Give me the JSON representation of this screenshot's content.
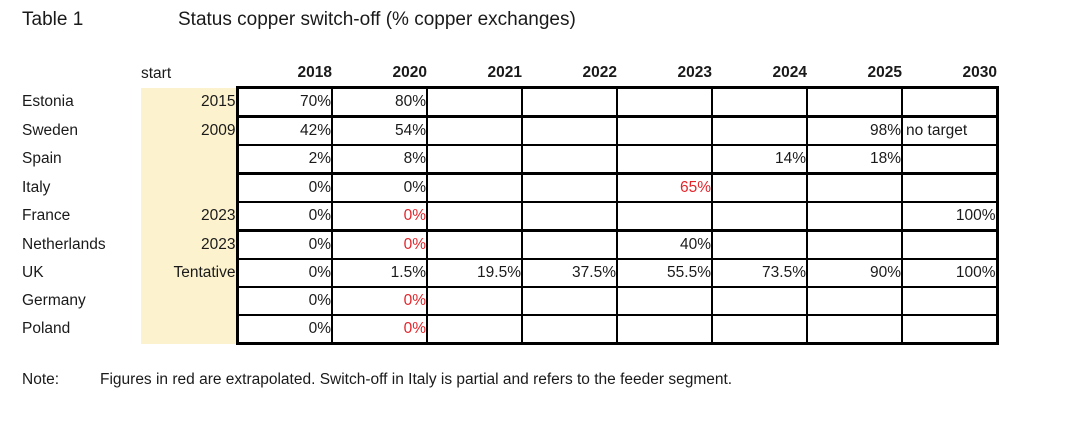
{
  "title": {
    "label": "Table 1",
    "text": "Status copper switch-off (% copper exchanges)"
  },
  "table": {
    "start_header": "start",
    "year_headers": [
      "2018",
      "2020",
      "2021",
      "2022",
      "2023",
      "2024",
      "2025",
      "2030"
    ],
    "rows": [
      {
        "country": "Estonia",
        "start": "2015",
        "thick_bottom": true,
        "cells": [
          {
            "t": "70%"
          },
          {
            "t": "80%"
          },
          {},
          {},
          {},
          {},
          {},
          {}
        ]
      },
      {
        "country": "Sweden",
        "start": "2009",
        "thick_bottom": false,
        "cells": [
          {
            "t": "42%"
          },
          {
            "t": "54%"
          },
          {},
          {},
          {},
          {},
          {
            "t": "98%"
          },
          {
            "t": "no target",
            "align": "left"
          }
        ]
      },
      {
        "country": "Spain",
        "start": "",
        "thick_bottom": true,
        "cells": [
          {
            "t": "2%"
          },
          {
            "t": "8%"
          },
          {},
          {},
          {},
          {
            "t": "14%"
          },
          {
            "t": "18%"
          },
          {}
        ]
      },
      {
        "country": "Italy",
        "start": "",
        "thick_bottom": false,
        "cells": [
          {
            "t": "0%"
          },
          {
            "t": "0%"
          },
          {},
          {},
          {
            "t": "65%",
            "red": true
          },
          {},
          {},
          {}
        ]
      },
      {
        "country": "France",
        "start": "2023",
        "thick_bottom": true,
        "cells": [
          {
            "t": "0%"
          },
          {
            "t": "0%",
            "red": true
          },
          {},
          {},
          {},
          {},
          {},
          {
            "t": "100%"
          }
        ]
      },
      {
        "country": "Netherlands",
        "start": "2023",
        "thick_bottom": false,
        "cells": [
          {
            "t": "0%"
          },
          {
            "t": "0%",
            "red": true
          },
          {},
          {},
          {
            "t": "40%"
          },
          {},
          {},
          {}
        ]
      },
      {
        "country": "UK",
        "start": "Tentative",
        "thick_bottom": false,
        "cells": [
          {
            "t": "0%"
          },
          {
            "t": "1.5%"
          },
          {
            "t": "19.5%"
          },
          {
            "t": "37.5%"
          },
          {
            "t": "55.5%"
          },
          {
            "t": "73.5%"
          },
          {
            "t": "90%"
          },
          {
            "t": "100%"
          }
        ]
      },
      {
        "country": "Germany",
        "start": "",
        "thick_bottom": false,
        "cells": [
          {
            "t": "0%"
          },
          {
            "t": "0%",
            "red": true
          },
          {},
          {},
          {},
          {},
          {},
          {}
        ]
      },
      {
        "country": "Poland",
        "start": "",
        "thick_bottom": false,
        "cells": [
          {
            "t": "0%"
          },
          {
            "t": "0%",
            "red": true
          },
          {},
          {},
          {},
          {},
          {},
          {}
        ]
      }
    ]
  },
  "note": {
    "label": "Note:",
    "text": "Figures in red are extrapolated. Switch-off in Italy is partial and refers to the feeder segment."
  },
  "colors": {
    "highlight_fill": "#FDF2CE",
    "extrapolated_red": "#E4252B",
    "grid_border": "#000000"
  }
}
